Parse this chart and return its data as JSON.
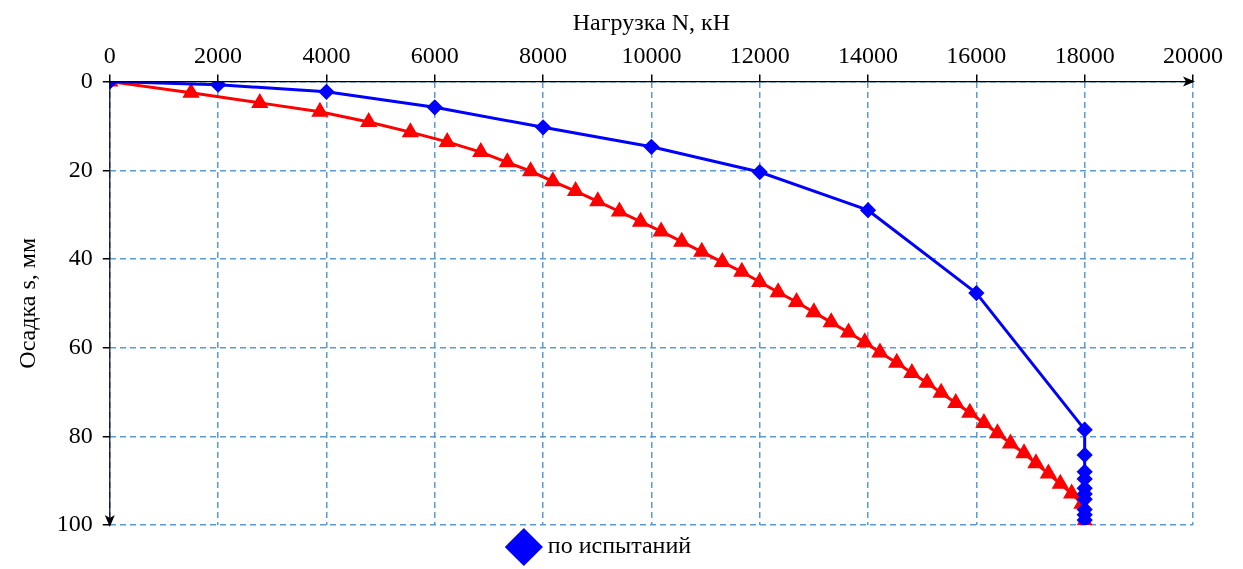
{
  "chart_data": {
    "type": "line",
    "xlabel": "Нагрузка N, кН",
    "ylabel": "Осадка s, мм",
    "xlim": [
      0,
      20000
    ],
    "xticks": [
      0,
      2000,
      4000,
      6000,
      8000,
      10000,
      12000,
      14000,
      16000,
      18000,
      20000
    ],
    "ylim": [
      100,
      0
    ],
    "yticks": [
      0,
      20,
      40,
      60,
      80,
      100
    ],
    "grid": true,
    "legend": "bottom",
    "line_style": "solid",
    "series": [
      {
        "color": "#ff0000",
        "marker": "triangle",
        "x": [
          0,
          1500,
          2770,
          3880,
          4780,
          5550,
          6230,
          6850,
          7340,
          7770,
          8180,
          8600,
          9010,
          9410,
          9800,
          10180,
          10560,
          10930,
          11310,
          11670,
          12000,
          12340,
          12680,
          13000,
          13320,
          13640,
          13940,
          14220,
          14530,
          14810,
          15090,
          15350,
          15620,
          15880,
          16140,
          16390,
          16630,
          16880,
          17100,
          17330,
          17550,
          17760,
          17950,
          18000
        ],
        "values": [
          0,
          2.5,
          4.8,
          6.8,
          9.1,
          11.4,
          13.6,
          15.9,
          18.2,
          20.2,
          22.5,
          24.7,
          27.0,
          29.3,
          31.6,
          33.8,
          36.1,
          38.4,
          40.7,
          42.9,
          45.2,
          47.5,
          49.7,
          52.0,
          54.3,
          56.6,
          58.8,
          61.1,
          63.4,
          65.7,
          67.9,
          70.2,
          72.5,
          74.7,
          77.0,
          79.3,
          81.6,
          83.8,
          86.1,
          88.4,
          90.7,
          92.9,
          95.2,
          99.2
        ]
      },
      {
        "name": "по испытаний",
        "color": "#0000ff",
        "marker": "diamond",
        "x": [
          0,
          2000,
          4000,
          6000,
          8000,
          10000,
          12000,
          14000,
          16000,
          18000,
          18000,
          18000,
          18000,
          18000,
          18000,
          18000,
          18000,
          18000,
          18000
        ],
        "values": [
          0,
          0.7,
          2.3,
          5.8,
          10.3,
          14.7,
          20.4,
          29,
          47.7,
          78.5,
          84.2,
          88,
          89.6,
          91.7,
          93,
          94.2,
          96.5,
          97.7,
          98.9
        ]
      }
    ]
  }
}
